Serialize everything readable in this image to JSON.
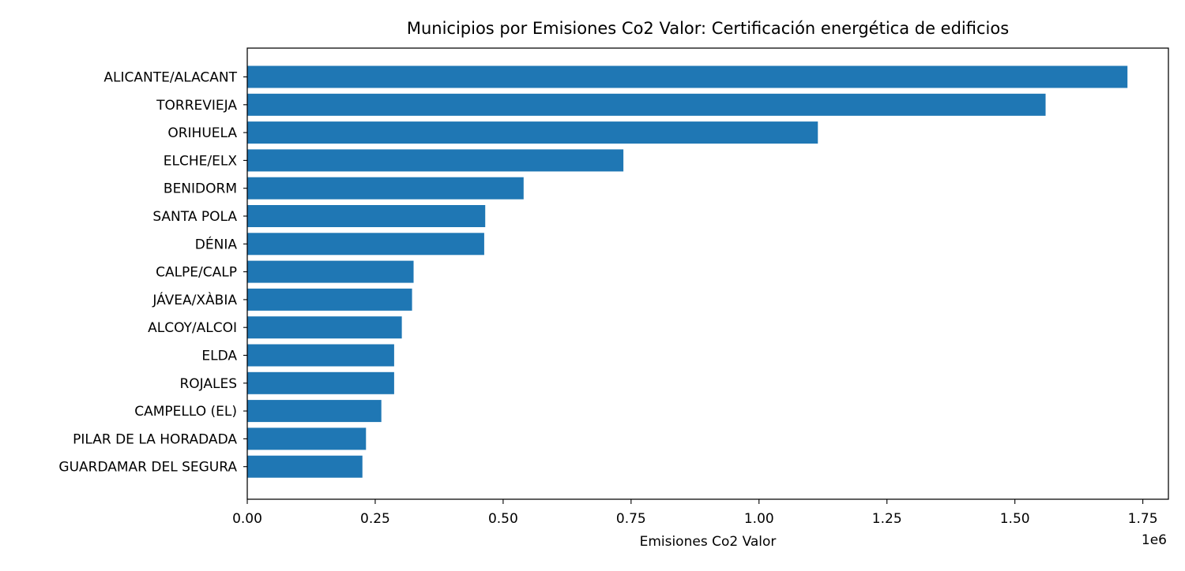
{
  "chart_data": {
    "type": "bar",
    "orientation": "horizontal",
    "title": "Municipios por Emisiones Co2 Valor: Certificación energética de edificios",
    "xlabel": "Emisiones Co2 Valor",
    "ylabel": "",
    "x_offset_text": "1e6",
    "xlim": [
      0,
      1800000
    ],
    "x_ticks": [
      0,
      250000,
      500000,
      750000,
      1000000,
      1250000,
      1500000,
      1750000
    ],
    "x_tick_labels": [
      "0.00",
      "0.25",
      "0.50",
      "0.75",
      "1.00",
      "1.25",
      "1.50",
      "1.75"
    ],
    "grid": false,
    "bar_color": "#1f77b4",
    "categories": [
      "ALICANTE/ALACANT",
      "TORREVIEJA",
      "ORIHUELA",
      "ELCHE/ELX",
      "BENIDORM",
      "SANTA POLA",
      "DÉNIA",
      "CALPE/CALP",
      "JÁVEA/XÀBIA",
      "ALCOY/ALCOI",
      "ELDA",
      "ROJALES",
      "CAMPELLO (EL)",
      "PILAR DE LA HORADADA",
      "GUARDAMAR DEL SEGURA"
    ],
    "values": [
      1720000,
      1560000,
      1115000,
      735000,
      540000,
      465000,
      463000,
      325000,
      322000,
      302000,
      287000,
      287000,
      262000,
      232000,
      225000
    ]
  }
}
